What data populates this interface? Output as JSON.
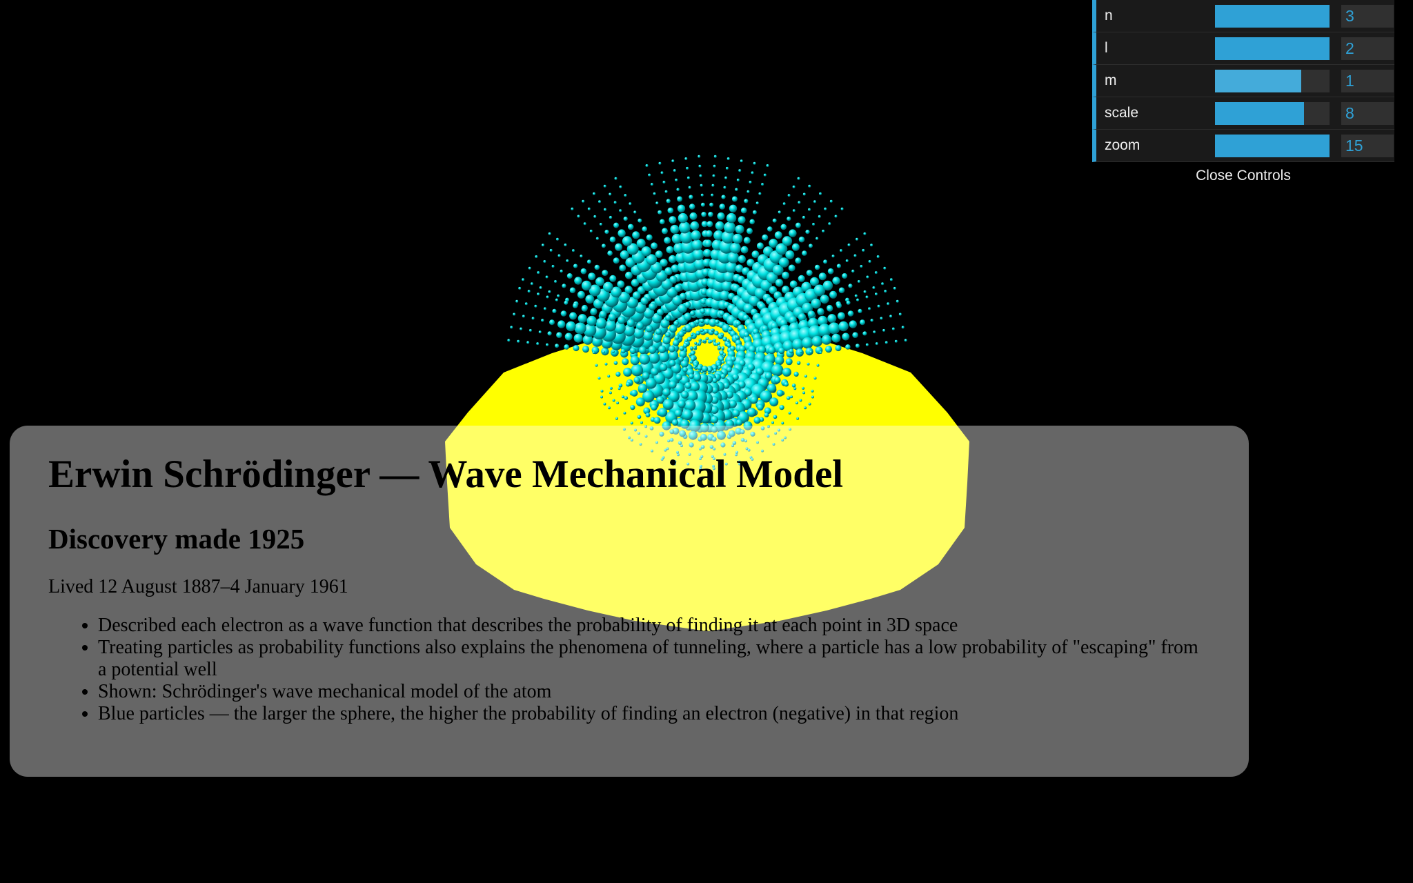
{
  "info": {
    "title": "Erwin Schrödinger — Wave Mechanical Model",
    "discovery": "Discovery made 1925",
    "lived": "Lived 12 August 1887–4 January 1961",
    "bullets": [
      "Described each electron as a wave function that describes the probability of finding it at each point in 3D space",
      "Treating particles as probability functions also explains the phenomena of tunneling, where a particle has a low probability of \"escaping\" from a potential well",
      "Shown: Schrödinger's wave mechanical model of the atom",
      "Blue particles — the larger the sphere, the higher the probability of finding an electron (negative) in that region"
    ]
  },
  "controls": {
    "rows": [
      {
        "label": "n",
        "value": "3",
        "fill": 1.0
      },
      {
        "label": "l",
        "value": "2",
        "fill": 1.0
      },
      {
        "label": "m",
        "value": "1",
        "fill": 0.75
      },
      {
        "label": "scale",
        "value": "8",
        "fill": 0.78
      },
      {
        "label": "zoom",
        "value": "15",
        "fill": 1.0
      }
    ],
    "close_label": "Close Controls"
  },
  "colors": {
    "nucleus": "#ffff00",
    "electron": "#00e5e5",
    "accent": "#2fa1d6"
  }
}
